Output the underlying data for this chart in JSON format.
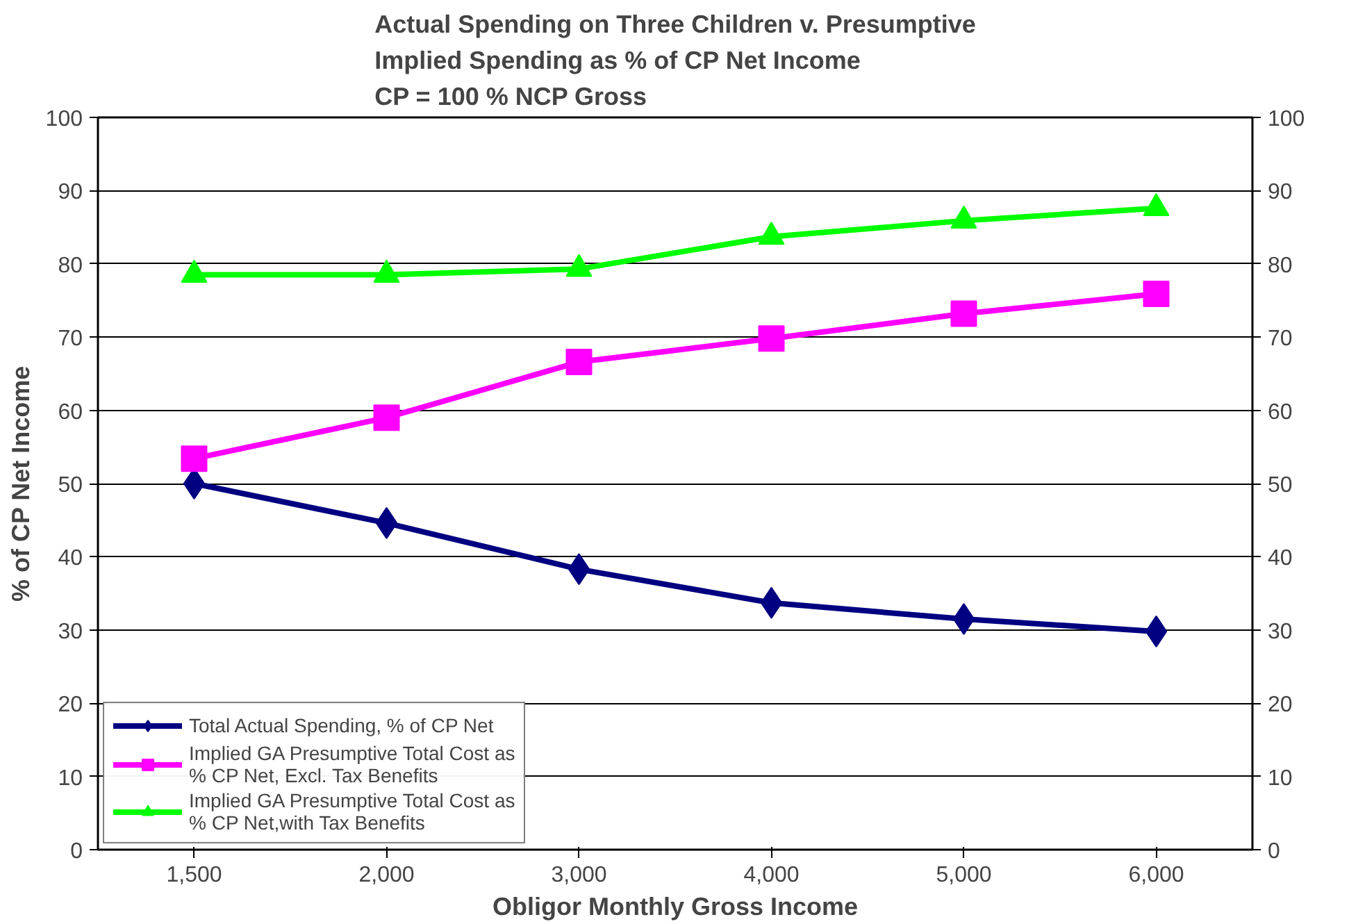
{
  "chart_data": {
    "type": "line",
    "title": "Actual Spending on Three Children v. Presumptive\nImplied Spending as % of CP Net Income\nCP = 100 % NCP Gross",
    "xlabel": "Obligor Monthly Gross Income",
    "ylabel": "% of CP Net Income",
    "categories": [
      "1,500",
      "2,000",
      "3,000",
      "4,000",
      "5,000",
      "6,000"
    ],
    "ylim": [
      0,
      100
    ],
    "yticks": [
      0,
      10,
      20,
      30,
      40,
      50,
      60,
      70,
      80,
      90,
      100
    ],
    "y2lim": [
      0,
      100
    ],
    "y2ticks": [
      0,
      10,
      20,
      30,
      40,
      50,
      60,
      70,
      80,
      90,
      100
    ],
    "grid": "y",
    "legend": "bottom left",
    "series": [
      {
        "name": "Total Actual Spending, % of CP Net",
        "color": "#000080",
        "marker": "diamond",
        "values": [
          50,
          44.6,
          38.3,
          33.7,
          31.5,
          29.8
        ]
      },
      {
        "name": "Implied GA Presumptive Total Cost as\n% CP Net, Excl. Tax Benefits",
        "color": "#ff00ff",
        "marker": "square",
        "values": [
          53.4,
          59,
          66.6,
          69.8,
          73.2,
          75.9
        ]
      },
      {
        "name": "Implied GA Presumptive Total Cost as\n% CP Net,with Tax Benefits",
        "color": "#00ff00",
        "marker": "triangle",
        "values": [
          78.5,
          78.5,
          79.3,
          83.7,
          85.9,
          87.6
        ]
      }
    ]
  }
}
